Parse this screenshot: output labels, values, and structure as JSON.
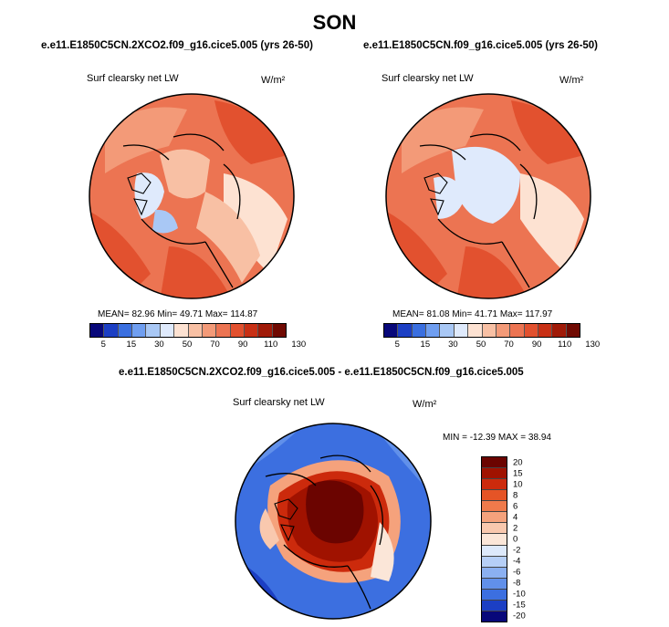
{
  "title": "SON",
  "panels": [
    {
      "case": "e.e11.E1850C5CN.2XCO2.f09_g16.cice5.005 (yrs 26-50)",
      "variable": "Surf clearsky net LW",
      "units": "W/m²",
      "stats": "MEAN=  82.96  Min=  49.71  Max= 114.87",
      "colorbar_labels": [
        "5",
        "15",
        "30",
        "50",
        "70",
        "90",
        "110",
        "130"
      ]
    },
    {
      "case": "e.e11.E1850C5CN.f09_g16.cice5.005 (yrs 26-50)",
      "variable": "Surf clearsky net LW",
      "units": "W/m²",
      "stats": "MEAN=  81.08  Min=  41.71  Max= 117.97",
      "colorbar_labels": [
        "5",
        "15",
        "30",
        "50",
        "70",
        "90",
        "110",
        "130"
      ]
    }
  ],
  "diff": {
    "case": "e.e11.E1850C5CN.2XCO2.f09_g16.cice5.005 - e.e11.E1850C5CN.f09_g16.cice5.005",
    "variable": "Surf clearsky net LW",
    "units": "W/m²",
    "stats": "MIN = -12.39 MAX =  38.94",
    "colorbar_labels": [
      "20",
      "15",
      "10",
      "8",
      "6",
      "4",
      "2",
      "0",
      "-2",
      "-4",
      "-6",
      "-8",
      "-10",
      "-15",
      "-20"
    ]
  },
  "colors": {
    "abs_scale": [
      "#08087a",
      "#1c3fc4",
      "#3a6fe0",
      "#6f9ef0",
      "#a9c8f5",
      "#dfeafc",
      "#fde2d2",
      "#f8c0a4",
      "#f39a78",
      "#ec7452",
      "#e2512f",
      "#c83015",
      "#a01a08",
      "#700a02"
    ],
    "diff_scale": [
      "#6b0400",
      "#a01200",
      "#cc2a0c",
      "#e55426",
      "#ef7a4b",
      "#f5a27c",
      "#f9c8ae",
      "#fbe6d8",
      "#dde9fb",
      "#b6cff7",
      "#8bb0f1",
      "#6190ea",
      "#3c6fe0",
      "#1c3fc4",
      "#08087a"
    ]
  }
}
